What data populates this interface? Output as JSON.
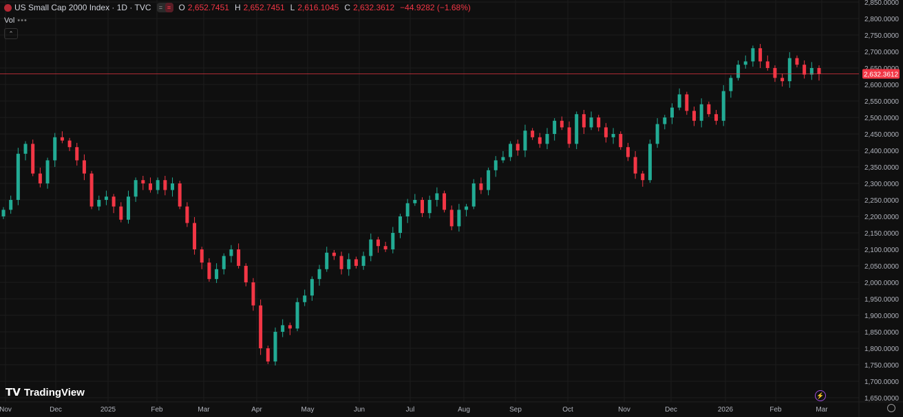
{
  "header": {
    "title": "US Small Cap 2000 Index · 1D · TVC",
    "open_label": "O",
    "open": "2,652.7451",
    "high_label": "H",
    "high": "2,652.7451",
    "low_label": "L",
    "low": "2,616.1045",
    "close_label": "C",
    "close": "2,632.3612",
    "change": "−44.9282 (−1.68%)",
    "volume_label": "Vol",
    "collapse_icon": "chevron-up-icon"
  },
  "branding": {
    "logo_text": "TradingView"
  },
  "colors": {
    "up": "#22ab94",
    "down": "#f23645",
    "background": "#0f0f0f",
    "grid": "#1c1c1c",
    "price_line": "#f23645"
  },
  "chart_data": {
    "type": "candlestick",
    "title": "US Small Cap 2000 Index · 1D · TVC",
    "ylim": [
      1650,
      2850
    ],
    "y_ticks": [
      "2,850.0000",
      "2,800.0000",
      "2,750.0000",
      "2,700.0000",
      "2,650.0000",
      "2,600.0000",
      "2,550.0000",
      "2,500.0000",
      "2,450.0000",
      "2,400.0000",
      "2,350.0000",
      "2,300.0000",
      "2,250.0000",
      "2,200.0000",
      "2,150.0000",
      "2,100.0000",
      "2,050.0000",
      "2,000.0000",
      "1,950.0000",
      "1,900.0000",
      "1,850.0000",
      "1,800.0000",
      "1,750.0000",
      "1,700.0000",
      "1,650.0000"
    ],
    "x_ticks": [
      "Nov",
      "Dec",
      "2025",
      "Feb",
      "Mar",
      "Apr",
      "May",
      "Jun",
      "Jul",
      "Aug",
      "Sep",
      "Oct",
      "Nov",
      "Dec",
      "2026",
      "Feb",
      "Mar"
    ],
    "last_price_label": "2,632.3612",
    "last_price": 2632.3612,
    "grid": true,
    "closes": [
      2220,
      2250,
      2390,
      2420,
      2330,
      2300,
      2370,
      2440,
      2430,
      2410,
      2370,
      2330,
      2230,
      2250,
      2260,
      2230,
      2190,
      2260,
      2310,
      2300,
      2280,
      2310,
      2280,
      2300,
      2230,
      2180,
      2100,
      2060,
      2010,
      2040,
      2080,
      2100,
      2050,
      2000,
      1930,
      1800,
      1760,
      1850,
      1870,
      1860,
      1940,
      1960,
      2010,
      2040,
      2090,
      2080,
      2040,
      2070,
      2050,
      2080,
      2130,
      2110,
      2100,
      2150,
      2200,
      2240,
      2250,
      2210,
      2250,
      2270,
      2220,
      2170,
      2220,
      2230,
      2300,
      2280,
      2340,
      2370,
      2380,
      2420,
      2400,
      2460,
      2440,
      2420,
      2450,
      2490,
      2470,
      2420,
      2510,
      2470,
      2500,
      2470,
      2440,
      2450,
      2410,
      2380,
      2330,
      2310,
      2420,
      2480,
      2500,
      2530,
      2570,
      2520,
      2490,
      2540,
      2510,
      2490,
      2580,
      2620,
      2660,
      2670,
      2710,
      2670,
      2650,
      2620,
      2610,
      2680,
      2660,
      2630,
      2650,
      2632
    ]
  }
}
